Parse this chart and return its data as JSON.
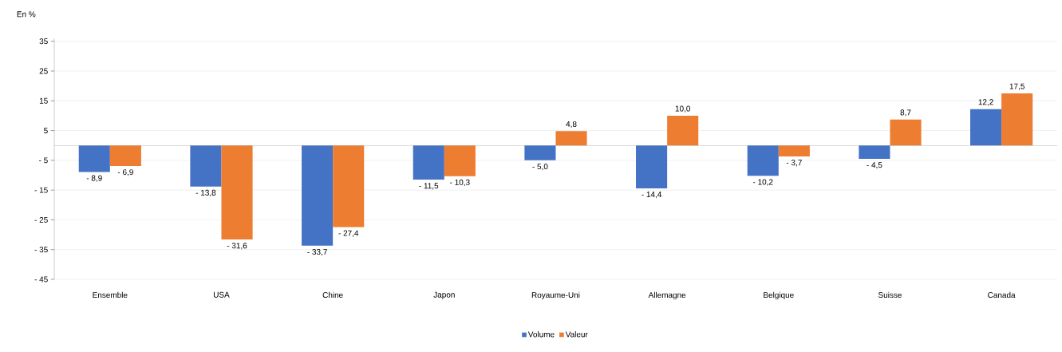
{
  "chart_data": {
    "type": "bar",
    "ylabel": "En %",
    "categories": [
      "Ensemble",
      "USA",
      "Chine",
      "Japon",
      "Royaume-Uni",
      "Allemagne",
      "Belgique",
      "Suisse",
      "Canada"
    ],
    "series": [
      {
        "name": "Volume",
        "color": "#4472c4",
        "values": [
          -8.9,
          -13.8,
          -33.7,
          -11.5,
          -5.0,
          -14.4,
          -10.2,
          -4.5,
          12.2
        ],
        "value_labels": [
          "- 8,9",
          "- 13,8",
          "- 33,7",
          "- 11,5",
          "- 5,0",
          "- 14,4",
          "- 10,2",
          "- 4,5",
          "12,2"
        ]
      },
      {
        "name": "Valeur",
        "color": "#ed7d31",
        "values": [
          -6.9,
          -31.6,
          -27.4,
          -10.3,
          4.8,
          10.0,
          -3.7,
          8.7,
          17.5
        ],
        "value_labels": [
          "- 6,9",
          "- 31,6",
          "- 27,4",
          "- 10,3",
          "4,8",
          "10,0",
          "- 3,7",
          "8,7",
          "17,5"
        ]
      }
    ],
    "ylim": [
      -45,
      36
    ],
    "yticks": [
      {
        "value": -45,
        "label": "- 45"
      },
      {
        "value": -35,
        "label": "- 35"
      },
      {
        "value": -25,
        "label": "- 25"
      },
      {
        "value": -15,
        "label": "- 15"
      },
      {
        "value": -5,
        "label": "- 5"
      },
      5,
      15,
      25,
      35
    ],
    "grid": "y",
    "legend": "bottom"
  }
}
